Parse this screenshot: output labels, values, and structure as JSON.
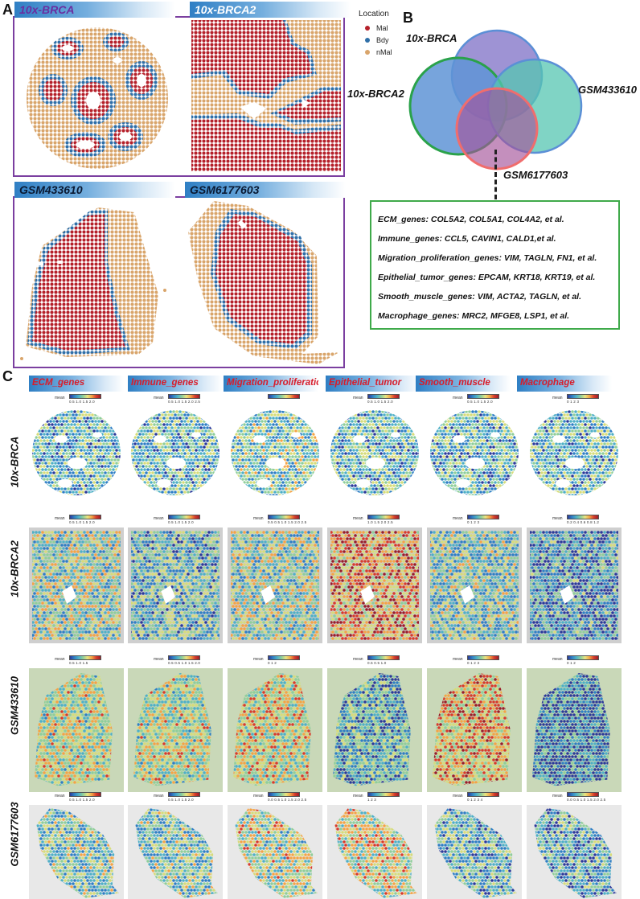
{
  "panels": {
    "A": {
      "letter": "A",
      "tiles": [
        {
          "title": "10x-BRCA"
        },
        {
          "title": "10x-BRCA2"
        },
        {
          "title": "GSM433610"
        },
        {
          "title": "GSM6177603"
        }
      ],
      "legend": {
        "title": "Location",
        "items": [
          {
            "label": "Mal",
            "color": "#b5202a"
          },
          {
            "label": "Bdy",
            "color": "#2f6fa8"
          },
          {
            "label": "nMal",
            "color": "#d9a56b"
          }
        ]
      }
    },
    "B": {
      "letter": "B",
      "venn": {
        "labels": [
          "10x-BRCA",
          "10x-BRCA2",
          "GSM433610",
          "GSM6177603"
        ]
      },
      "genes": [
        "ECM_genes: COL5A2, COL5A1, COL4A2, et al.",
        "Immune_genes: CCL5, CAVIN1, CALD1,et al.",
        "Migration_proliferation_genes: VIM, TAGLN, FN1, et al.",
        "Epithelial_tumor_genes: EPCAM, KRT18, KRT19, et al.",
        "Smooth_muscle_genes: VIM, ACTA2, TAGLN, et al.",
        "Macrophage_genes: MRC2, MFGE8, LSP1, et al."
      ]
    },
    "C": {
      "letter": "C",
      "columns": [
        "ECM_genes",
        "Immune_genes",
        "Migration_proliferation",
        "Epithelial_tumor",
        "Smooth_muscle",
        "Macrophage"
      ],
      "rows": [
        "10x-BRCA",
        "10x-BRCA2",
        "GSM433610",
        "GSM6177603"
      ],
      "colorbar_label": "mean",
      "ticks": [
        [
          "0.5 1.0 1.5 2.0",
          "0.5 1.0 1.5 2.0 2.5",
          "",
          "0.5 1.0 1.5 2.0",
          "0.5 1.0 1.5 2.0",
          "0 1 2 3"
        ],
        [
          "0.5 1.0 1.5 2.0",
          "0.5 1.0 1.5 2.0",
          "0.5 0.5 1.0 1.5 2.0 2.5",
          "1.0 1.5 2.0 2.5",
          "0 1 2 3",
          "0.2 0.4 0.6 0.8 1.2"
        ],
        [
          "0.5 1.0 1.5",
          "0.5 0.5 1.0 1.5 2.0",
          "0 1 2",
          "0.5 0.5 1.0",
          "0 1 2 3",
          "0 1 2"
        ],
        [
          "0.5 1.0 1.5 2.0",
          "0.5 1.0 1.5 2.0",
          "0.0 0.5 1.0 1.5 2.0 2.5",
          "1 2 3",
          "0 1 2 3 4",
          "0.0 0.5 1.0 1.5 2.0 2.5"
        ]
      ]
    }
  }
}
